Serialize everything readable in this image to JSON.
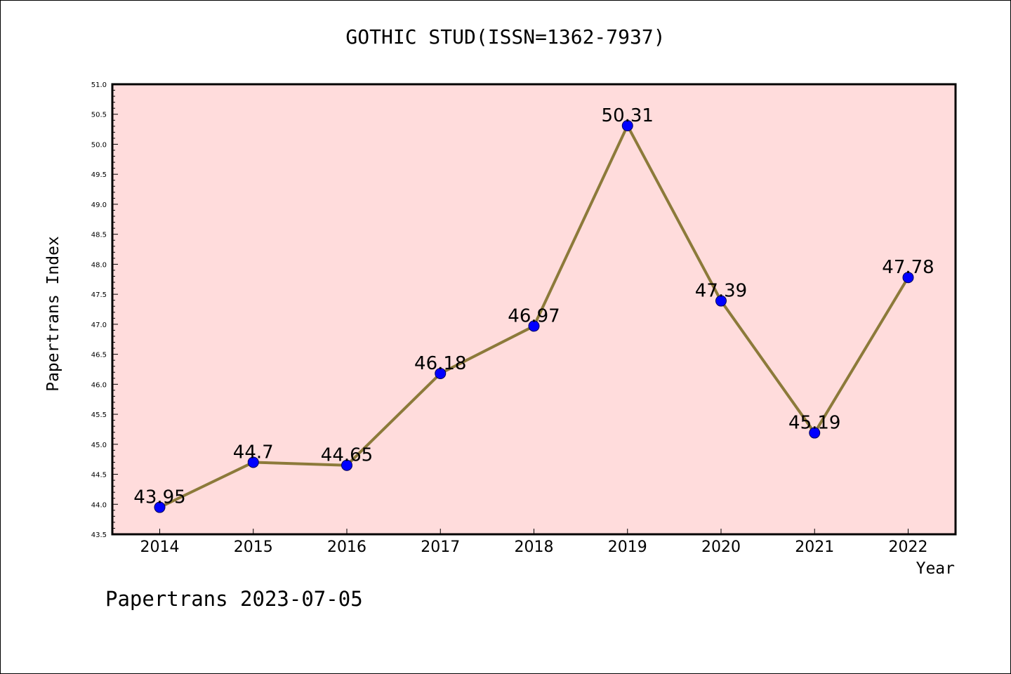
{
  "chart_data": {
    "type": "line",
    "title": "GOTHIC STUD(ISSN=1362-7937)",
    "xlabel": "Year",
    "ylabel": "Papertrans Index",
    "ylim": [
      43.5,
      51.0
    ],
    "yticks": [
      "43.5",
      "44.0",
      "44.5",
      "45.0",
      "45.5",
      "46.0",
      "46.5",
      "47.0",
      "47.5",
      "48.0",
      "48.5",
      "49.0",
      "49.5",
      "50.0",
      "50.5",
      "51.0"
    ],
    "categories": [
      "2014",
      "2015",
      "2016",
      "2017",
      "2018",
      "2019",
      "2020",
      "2021",
      "2022"
    ],
    "values": [
      43.95,
      44.7,
      44.65,
      46.18,
      46.97,
      50.31,
      47.39,
      45.19,
      47.78
    ],
    "labels": [
      "43.95",
      "44.7",
      "44.65",
      "46.18",
      "46.97",
      "50.31",
      "47.39",
      "45.19",
      "47.78"
    ],
    "colors": {
      "background": "#ffdcdc",
      "line": "#8c7a3a",
      "marker": "#0000ff"
    },
    "grid": false,
    "footer": "Papertrans 2023-07-05"
  }
}
